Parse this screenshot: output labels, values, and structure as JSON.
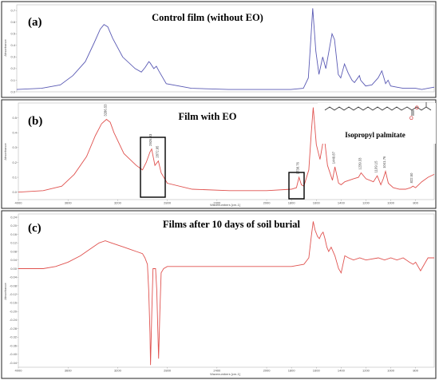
{
  "chart_data": [
    {
      "type": "line",
      "panel": "(a)",
      "title": "Control film (without EO)",
      "xlabel": "Wavenumbers [cm-1]",
      "ylabel": "Absorbance",
      "xlim": [
        4000,
        650
      ],
      "ylim": [
        0,
        0.7
      ],
      "x_ticks": [],
      "y_ticks": [
        "0.0",
        "0.1",
        "0.2",
        "0.3",
        "0.4",
        "0.5",
        "0.6",
        "0.7"
      ],
      "color": "#5a5ab4",
      "series": [
        {
          "x": [
            4000,
            3800,
            3650,
            3550,
            3450,
            3380,
            3330,
            3300,
            3270,
            3230,
            3150,
            3050,
            3000,
            2970,
            2940,
            2930,
            2900,
            2880,
            2860,
            2800,
            2600,
            2300,
            2000,
            1800,
            1700,
            1660,
            1640,
            1625,
            1600,
            1575,
            1545,
            1520,
            1470,
            1450,
            1420,
            1400,
            1370,
            1340,
            1310,
            1290,
            1250,
            1240,
            1200,
            1150,
            1100,
            1070,
            1040,
            1020,
            1000,
            950,
            900,
            850,
            800,
            750,
            700,
            650
          ],
          "y": [
            0.02,
            0.03,
            0.06,
            0.14,
            0.26,
            0.42,
            0.54,
            0.58,
            0.56,
            0.46,
            0.3,
            0.2,
            0.17,
            0.21,
            0.26,
            0.25,
            0.2,
            0.22,
            0.18,
            0.07,
            0.03,
            0.02,
            0.02,
            0.02,
            0.03,
            0.12,
            0.45,
            0.72,
            0.35,
            0.15,
            0.3,
            0.2,
            0.5,
            0.45,
            0.15,
            0.12,
            0.24,
            0.16,
            0.1,
            0.08,
            0.14,
            0.1,
            0.05,
            0.06,
            0.12,
            0.18,
            0.07,
            0.1,
            0.05,
            0.04,
            0.03,
            0.03,
            0.03,
            0.02,
            0.03,
            0.04
          ]
        }
      ]
    },
    {
      "type": "line",
      "panel": "(b)",
      "title": "Film with EO",
      "compound": "Isopropyl palmitate",
      "xlabel": "Wavenumbers [cm-1]",
      "ylabel": "Absorbance",
      "xlim": [
        4000,
        650
      ],
      "ylim": [
        -0.05,
        0.6
      ],
      "x_ticks": [
        "4000",
        "3600",
        "3200",
        "2800",
        "2400",
        "2000",
        "1800",
        "1600",
        "1400",
        "1200",
        "1000",
        "800"
      ],
      "y_ticks": [
        "0.0",
        "0.1",
        "0.2",
        "0.3",
        "0.4",
        "0.5"
      ],
      "color": "#e0524f",
      "peak_labels": [
        "3286.53",
        "2926.33",
        "2872.95",
        "1738.76",
        "1537.38",
        "1449.87",
        "1239.33",
        "1109.15",
        "1041.76",
        "822.50"
      ],
      "series": [
        {
          "x": [
            4000,
            3800,
            3650,
            3550,
            3450,
            3380,
            3330,
            3290,
            3260,
            3230,
            3150,
            3050,
            3000,
            2970,
            2940,
            2926,
            2900,
            2872,
            2850,
            2800,
            2600,
            2300,
            2000,
            1800,
            1760,
            1739,
            1720,
            1700,
            1660,
            1640,
            1625,
            1600,
            1570,
            1537,
            1510,
            1470,
            1450,
            1420,
            1400,
            1370,
            1300,
            1260,
            1239,
            1200,
            1140,
            1109,
            1080,
            1060,
            1042,
            1020,
            980,
            930,
            880,
            840,
            822,
            800,
            750,
            700,
            650
          ],
          "y": [
            0.0,
            0.01,
            0.04,
            0.12,
            0.24,
            0.38,
            0.46,
            0.49,
            0.47,
            0.4,
            0.26,
            0.18,
            0.15,
            0.2,
            0.27,
            0.29,
            0.18,
            0.21,
            0.13,
            0.06,
            0.02,
            0.01,
            0.01,
            0.02,
            0.03,
            0.1,
            0.05,
            0.04,
            0.15,
            0.4,
            0.57,
            0.32,
            0.22,
            0.38,
            0.18,
            0.08,
            0.17,
            0.06,
            0.05,
            0.07,
            0.09,
            0.1,
            0.13,
            0.09,
            0.07,
            0.11,
            0.05,
            0.09,
            0.14,
            0.06,
            0.03,
            0.02,
            0.02,
            0.03,
            0.04,
            0.03,
            0.07,
            0.1,
            0.12
          ]
        }
      ]
    },
    {
      "type": "line",
      "panel": "(c)",
      "title": "Films after 10 days of soil burial",
      "xlabel": "Wavenumbers [cm-1]",
      "ylabel": "Absorbance",
      "xlim": [
        4000,
        650
      ],
      "ylim": [
        -0.46,
        0.25
      ],
      "x_ticks": [
        "4000",
        "3600",
        "3200",
        "2800",
        "2400",
        "2000",
        "1800",
        "1600",
        "1400",
        "1200",
        "1000",
        "800"
      ],
      "y_ticks": [
        "0.24",
        "0.20",
        "0.16",
        "0.12",
        "0.08",
        "0.04",
        "0.00",
        "-0.04",
        "-0.08",
        "-0.12",
        "-0.16",
        "-0.20",
        "-0.24",
        "-0.28",
        "-0.32",
        "-0.36",
        "-0.40",
        "-0.44"
      ],
      "color": "#e0524f",
      "series": [
        {
          "x": [
            4000,
            3800,
            3700,
            3600,
            3500,
            3450,
            3400,
            3350,
            3300,
            3250,
            3200,
            3150,
            3100,
            3050,
            3000,
            2980,
            2960,
            2950,
            2940,
            2935,
            2925,
            2915,
            2905,
            2895,
            2885,
            2870,
            2860,
            2850,
            2840,
            2830,
            2800,
            2700,
            2500,
            2300,
            2000,
            1800,
            1700,
            1660,
            1640,
            1625,
            1610,
            1590,
            1575,
            1560,
            1545,
            1530,
            1515,
            1500,
            1480,
            1450,
            1420,
            1400,
            1370,
            1340,
            1300,
            1250,
            1200,
            1100,
            1050,
            1000,
            950,
            900,
            850,
            820,
            800,
            760,
            720,
            700,
            650
          ],
          "y": [
            0.0,
            0.0,
            0.01,
            0.03,
            0.06,
            0.08,
            0.1,
            0.12,
            0.13,
            0.12,
            0.11,
            0.1,
            0.09,
            0.08,
            0.07,
            0.05,
            0.02,
            -0.1,
            -0.3,
            -0.45,
            -0.2,
            0.0,
            0.0,
            0.0,
            -0.1,
            -0.42,
            -0.2,
            -0.02,
            -0.01,
            0.0,
            0.01,
            0.01,
            0.01,
            0.01,
            0.01,
            0.01,
            0.02,
            0.05,
            0.15,
            0.22,
            0.18,
            0.15,
            0.14,
            0.16,
            0.17,
            0.14,
            0.1,
            0.08,
            0.1,
            0.06,
            0.0,
            -0.02,
            0.06,
            0.05,
            0.04,
            0.05,
            0.04,
            0.05,
            0.04,
            0.05,
            0.04,
            0.05,
            0.03,
            0.02,
            0.03,
            -0.01,
            0.03,
            0.05,
            0.05
          ]
        }
      ]
    }
  ]
}
